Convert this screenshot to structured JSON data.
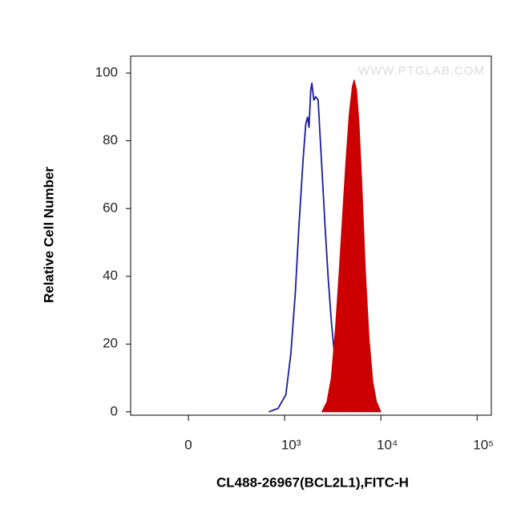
{
  "chart_data": {
    "type": "line",
    "watermark": "WWW.PTGLAB.COM",
    "x_label": "CL488-26967(BCL2L1),FITC-H",
    "y_label": "Relative Cell Number",
    "xscale": "symlog",
    "linthresh": 1000,
    "xlim": [
      -600,
      140600
    ],
    "ylim": [
      -1,
      105
    ],
    "xticks": [
      0,
      {
        "value": 1000,
        "label": "10³"
      },
      {
        "value": 10000,
        "label": "10⁴"
      },
      {
        "value": 100000,
        "label": "10⁵"
      }
    ],
    "yticks": [
      0,
      20,
      40,
      60,
      80,
      100
    ],
    "series": [
      {
        "color": "#1c1c9c",
        "filled": false,
        "x": [
          836,
          932,
          1030,
          1160,
          1290,
          1410,
          1560,
          1660,
          1730,
          1790,
          1870,
          1920,
          2010,
          2100,
          2230,
          2330,
          2480,
          2630,
          2830,
          3050,
          3290,
          3590,
          3980,
          4420,
          5130,
          5940
        ],
        "values": [
          0,
          1,
          5,
          17,
          35,
          55,
          75,
          85,
          87,
          84,
          95,
          97,
          92,
          93,
          92,
          82,
          68,
          55,
          40,
          27,
          17,
          11,
          6,
          3,
          1,
          0
        ]
      },
      {
        "color": "#cc0000",
        "filled": true,
        "x": [
          2440,
          2750,
          3050,
          3380,
          3700,
          4040,
          4350,
          4690,
          5050,
          5280,
          5600,
          5940,
          6400,
          6900,
          7540,
          8240,
          9010,
          10000
        ],
        "values": [
          0,
          3,
          10,
          25,
          42,
          60,
          75,
          88,
          96,
          98,
          95,
          85,
          65,
          42,
          22,
          9,
          3,
          0
        ]
      }
    ]
  }
}
